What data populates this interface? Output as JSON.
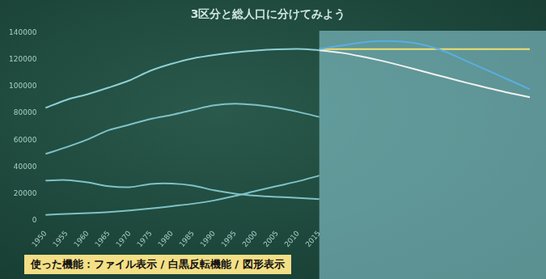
{
  "chart_data": {
    "type": "line",
    "title": "3区分と総人口に分けてみよう",
    "annotation": "使った機能：ファイル表示 / 白黒反転機能 / 図形表示",
    "categories": [
      1950,
      1955,
      1960,
      1965,
      1970,
      1975,
      1980,
      1985,
      1990,
      1995,
      2000,
      2005,
      2010,
      2015,
      null,
      null,
      null,
      null,
      null,
      null,
      null,
      null,
      null,
      null
    ],
    "series": [
      {
        "color": "#8fd0d4",
        "values": [
          84115,
          90077,
          94302,
          99209,
          104665,
          111940,
          117060,
          121049,
          123611,
          125570,
          126926,
          127768,
          128057,
          127095,
          null,
          null,
          null,
          null,
          null,
          null,
          null,
          null,
          null,
          null
        ]
      },
      {
        "color": "#7fc2c6",
        "values": [
          49658,
          54730,
          60469,
          67444,
          71566,
          75807,
          78835,
          82506,
          85904,
          87165,
          86220,
          84092,
          81032,
          77282,
          null,
          null,
          null,
          null,
          null,
          null,
          null,
          null,
          null,
          null
        ]
      },
      {
        "color": "#7fc2c6",
        "values": [
          29786,
          30123,
          28434,
          25529,
          24823,
          27221,
          27507,
          26033,
          22486,
          20014,
          18472,
          17521,
          16803,
          15887,
          null,
          null,
          null,
          null,
          null,
          null,
          null,
          null,
          null,
          null
        ]
      },
      {
        "color": "#7fc2c6",
        "values": [
          4155,
          4786,
          5398,
          6236,
          7393,
          8865,
          10647,
          12468,
          14895,
          18261,
          22005,
          25672,
          29246,
          33465,
          null,
          null,
          null,
          null,
          null,
          null,
          null,
          null,
          null,
          null
        ]
      },
      {
        "color": "#5aaee0",
        "values": [
          null,
          null,
          null,
          null,
          null,
          null,
          null,
          null,
          null,
          null,
          null,
          null,
          null,
          128000,
          130500,
          133000,
          134000,
          133500,
          131000,
          126000,
          119000,
          112000,
          105000,
          98000
        ]
      },
      {
        "color": "#f2f2f2",
        "values": [
          null,
          null,
          null,
          null,
          null,
          null,
          null,
          null,
          null,
          null,
          null,
          null,
          null,
          127095,
          125300,
          122500,
          119100,
          115200,
          111000,
          106900,
          102800,
          99000,
          95300,
          92000
        ]
      },
      {
        "color": "#f0e070",
        "values": [
          null,
          null,
          null,
          null,
          null,
          null,
          null,
          null,
          null,
          null,
          null,
          null,
          null,
          128000,
          128000,
          128000,
          128000,
          128000,
          128000,
          128000,
          128000,
          128000,
          128000,
          128000
        ]
      }
    ],
    "ylim": [
      0,
      140000
    ],
    "yticks": [
      0,
      20000,
      40000,
      60000,
      80000,
      100000,
      120000,
      140000
    ],
    "grid": false
  }
}
